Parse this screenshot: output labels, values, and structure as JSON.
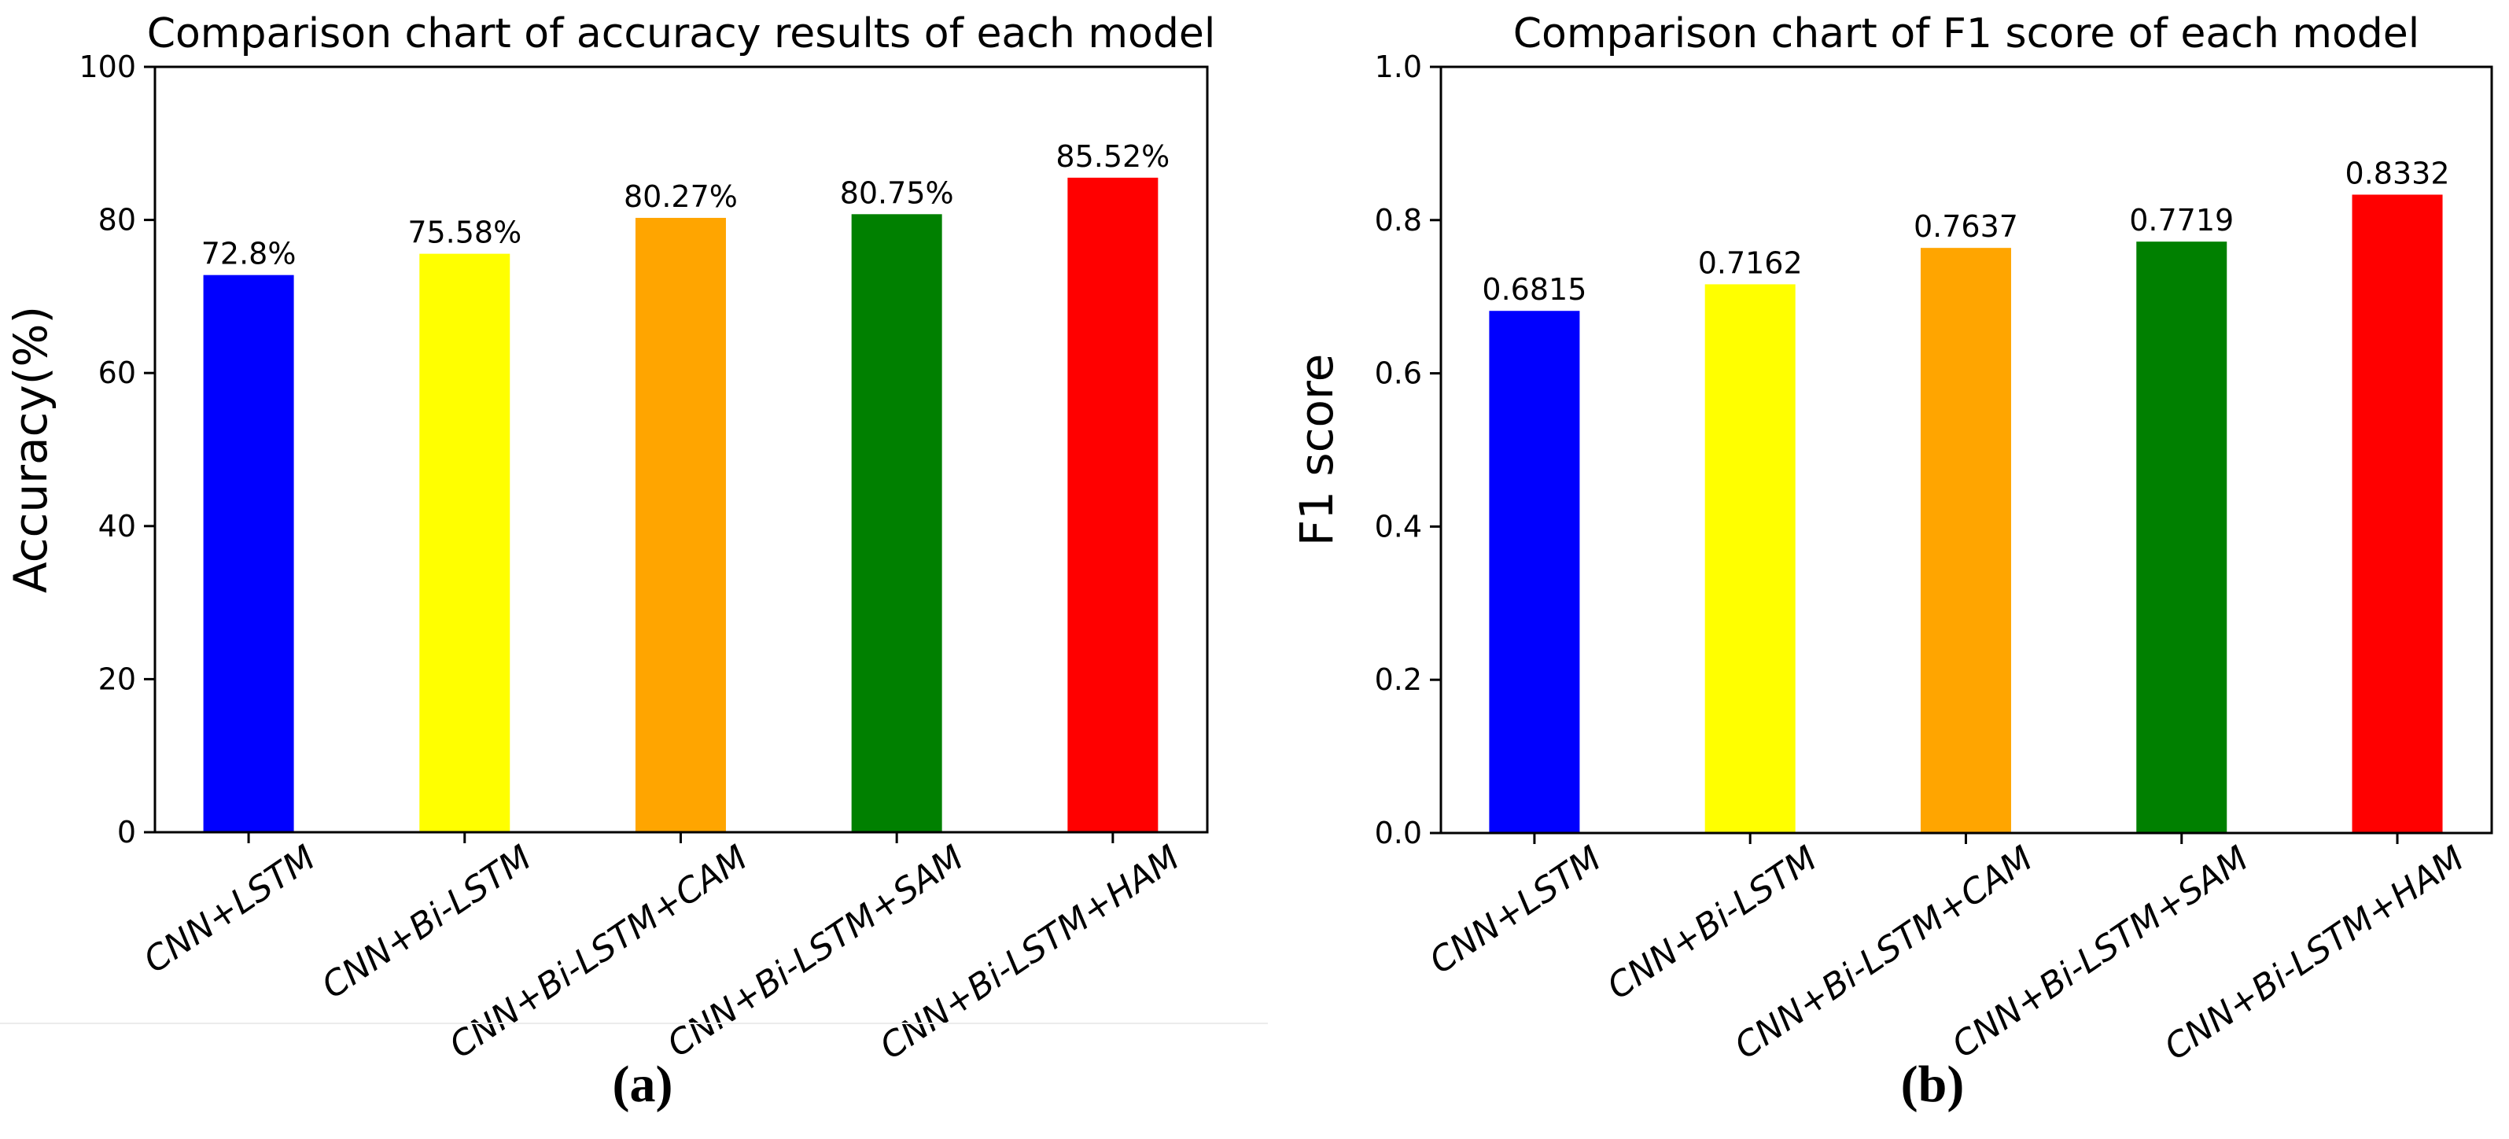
{
  "page": {
    "background": "#ffffff"
  },
  "chart_data": [
    {
      "type": "bar",
      "panel_label": "(a)",
      "title": "Comparison chart of accuracy results of each model",
      "xlabel": "",
      "ylabel": "Accuracy(%)",
      "ylim": [
        0,
        100
      ],
      "yticks": [
        "0",
        "20",
        "40",
        "60",
        "80",
        "100"
      ],
      "categories": [
        "CNN+LSTM",
        "CNN+Bi-LSTM",
        "CNN+Bi-LSTM+CAM",
        "CNN+Bi-LSTM+SAM",
        "CNN+Bi-LSTM+HAM"
      ],
      "values": [
        72.8,
        75.58,
        80.27,
        80.75,
        85.52
      ],
      "value_labels": [
        "72.8%",
        "75.58%",
        "80.27%",
        "80.75%",
        "85.52%"
      ],
      "bar_colors": [
        "#0000ff",
        "#ffff00",
        "#ffa500",
        "#008000",
        "#ff0000"
      ],
      "grid": false,
      "legend": null,
      "axis_color": "#000000"
    },
    {
      "type": "bar",
      "panel_label": "(b)",
      "title": "Comparison chart of F1 score of each model",
      "xlabel": "",
      "ylabel": "F1 score",
      "ylim": [
        0,
        1.0
      ],
      "yticks": [
        "0.0",
        "0.2",
        "0.4",
        "0.6",
        "0.8",
        "1.0"
      ],
      "categories": [
        "CNN+LSTM",
        "CNN+Bi-LSTM",
        "CNN+Bi-LSTM+CAM",
        "CNN+Bi-LSTM+SAM",
        "CNN+Bi-LSTM+HAM"
      ],
      "values": [
        0.6815,
        0.7162,
        0.7637,
        0.7719,
        0.8332
      ],
      "value_labels": [
        "0.6815",
        "0.7162",
        "0.7637",
        "0.7719",
        "0.8332"
      ],
      "bar_colors": [
        "#0000ff",
        "#ffff00",
        "#ffa500",
        "#008000",
        "#ff0000"
      ],
      "grid": false,
      "legend": null,
      "axis_color": "#000000"
    }
  ]
}
